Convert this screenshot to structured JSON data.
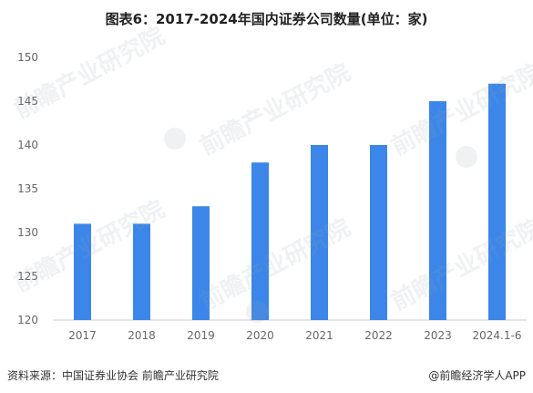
{
  "title": "图表6：2017-2024年国内证券公司数量(单位：家)",
  "watermark": "前瞻产业研究院",
  "footer": {
    "source": "资料来源：中国证券业协会 前瞻产业研究院",
    "credit": "@前瞻经济学人APP"
  },
  "colors": {
    "bar": "#3b86e8",
    "tick": "#666666",
    "axis": "#cccccc"
  },
  "chart_data": {
    "type": "bar",
    "title": "图表6：2017-2024年国内证券公司数量(单位：家)",
    "categories": [
      "2017",
      "2018",
      "2019",
      "2020",
      "2021",
      "2022",
      "2023",
      "2024.1-6"
    ],
    "values": [
      131,
      131,
      133,
      138,
      140,
      140,
      145,
      147
    ],
    "ylim": [
      120,
      150
    ],
    "yticks": [
      120,
      125,
      130,
      135,
      140,
      145,
      150
    ],
    "grid": false,
    "xlabel": "",
    "ylabel": ""
  }
}
